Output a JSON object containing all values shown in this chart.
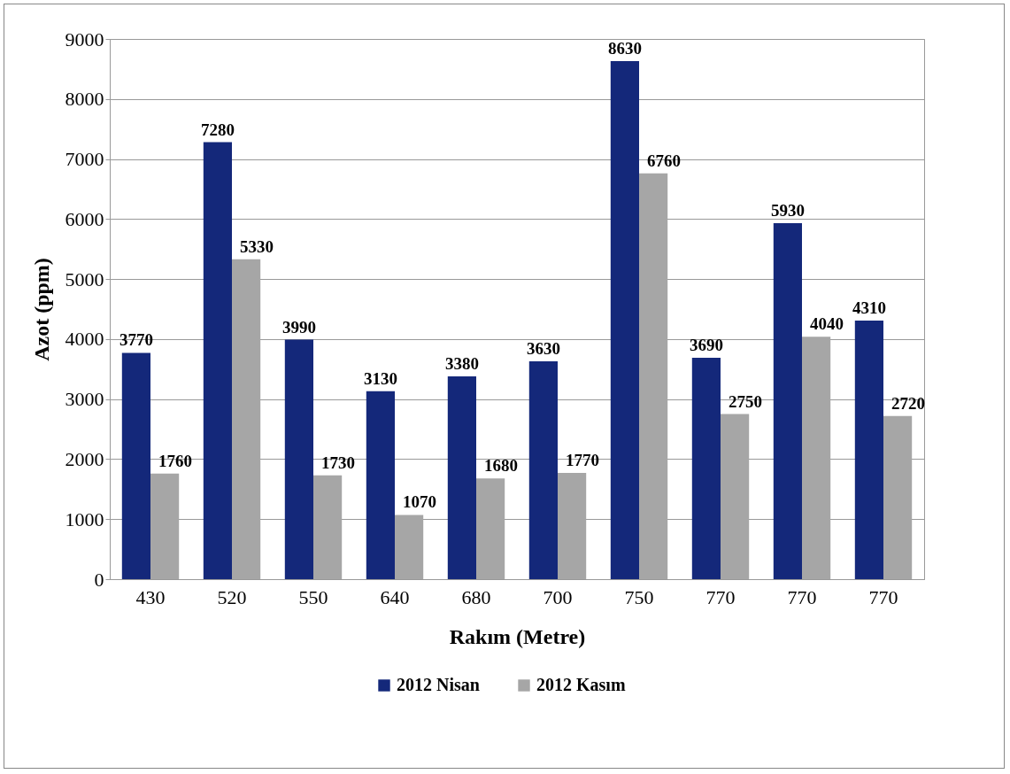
{
  "chart_data": {
    "type": "bar",
    "xlabel": "Rakım (Metre)",
    "ylabel": "Azot (ppm)",
    "categories": [
      "430",
      "520",
      "550",
      "640",
      "680",
      "700",
      "750",
      "770",
      "770",
      "770"
    ],
    "series": [
      {
        "name": "2012 Nisan",
        "color": "#14287a",
        "values": [
          3770,
          7280,
          3990,
          3130,
          3380,
          3630,
          8630,
          3690,
          5930,
          4310
        ]
      },
      {
        "name": "2012 Kasım",
        "color": "#a6a6a6",
        "values": [
          1760,
          5330,
          1730,
          1070,
          1680,
          1770,
          6760,
          2750,
          4040,
          2720
        ]
      }
    ],
    "ylim": [
      0,
      9000
    ],
    "yticks": [
      0,
      1000,
      2000,
      3000,
      4000,
      5000,
      6000,
      7000,
      8000,
      9000
    ],
    "grid": "y",
    "legend": "bottom",
    "data_labels": true
  }
}
